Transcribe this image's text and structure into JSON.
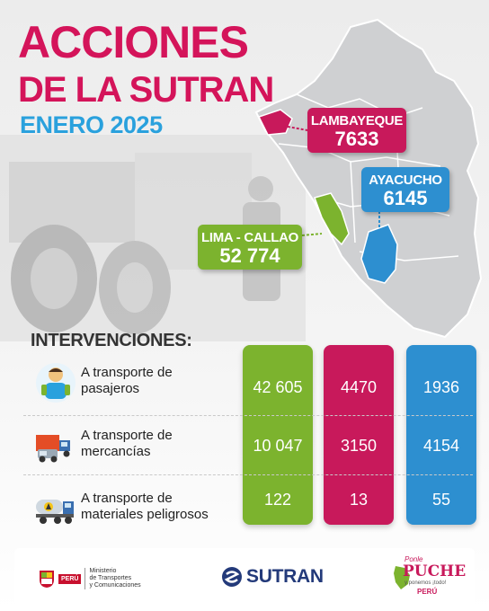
{
  "header": {
    "title_line1": "ACCIONES",
    "title_line2": "DE LA SUTRAN",
    "subtitle": "ENERO 2025"
  },
  "regions": [
    {
      "name": "LAMBAYEQUE",
      "count": "7633",
      "color": "#c8195b"
    },
    {
      "name": "AYACUCHO",
      "count": "6145",
      "color": "#2d8fd0"
    },
    {
      "name": "LIMA - CALLAO",
      "count": "52 774",
      "color": "#7cb32e"
    }
  ],
  "interventions": {
    "title": "INTERVENCIONES:",
    "rows": [
      {
        "line1": "A transporte de",
        "line2": "pasajeros",
        "icon": "passenger-icon",
        "values": [
          "42 605",
          "4470",
          "1936"
        ]
      },
      {
        "line1": "A transporte de",
        "line2": "mercancías",
        "icon": "cargo-truck-icon",
        "values": [
          "10 047",
          "3150",
          "4154"
        ]
      },
      {
        "line1": "A transporte de",
        "line2": "materiales peligrosos",
        "icon": "tanker-truck-icon",
        "values": [
          "122",
          "13",
          "55"
        ]
      }
    ]
  },
  "footer": {
    "peru_label": "PERÚ",
    "ministry_line1": "Ministerio",
    "ministry_line2": "de Transportes",
    "ministry_line3": "y Comunicaciones",
    "sutran_label": "SUTRAN",
    "campaign_line1": "Ponle",
    "campaign_line2": "PUCHE",
    "campaign_line3": "y ponemos ¡todo!",
    "campaign_line4": "PERÚ"
  }
}
